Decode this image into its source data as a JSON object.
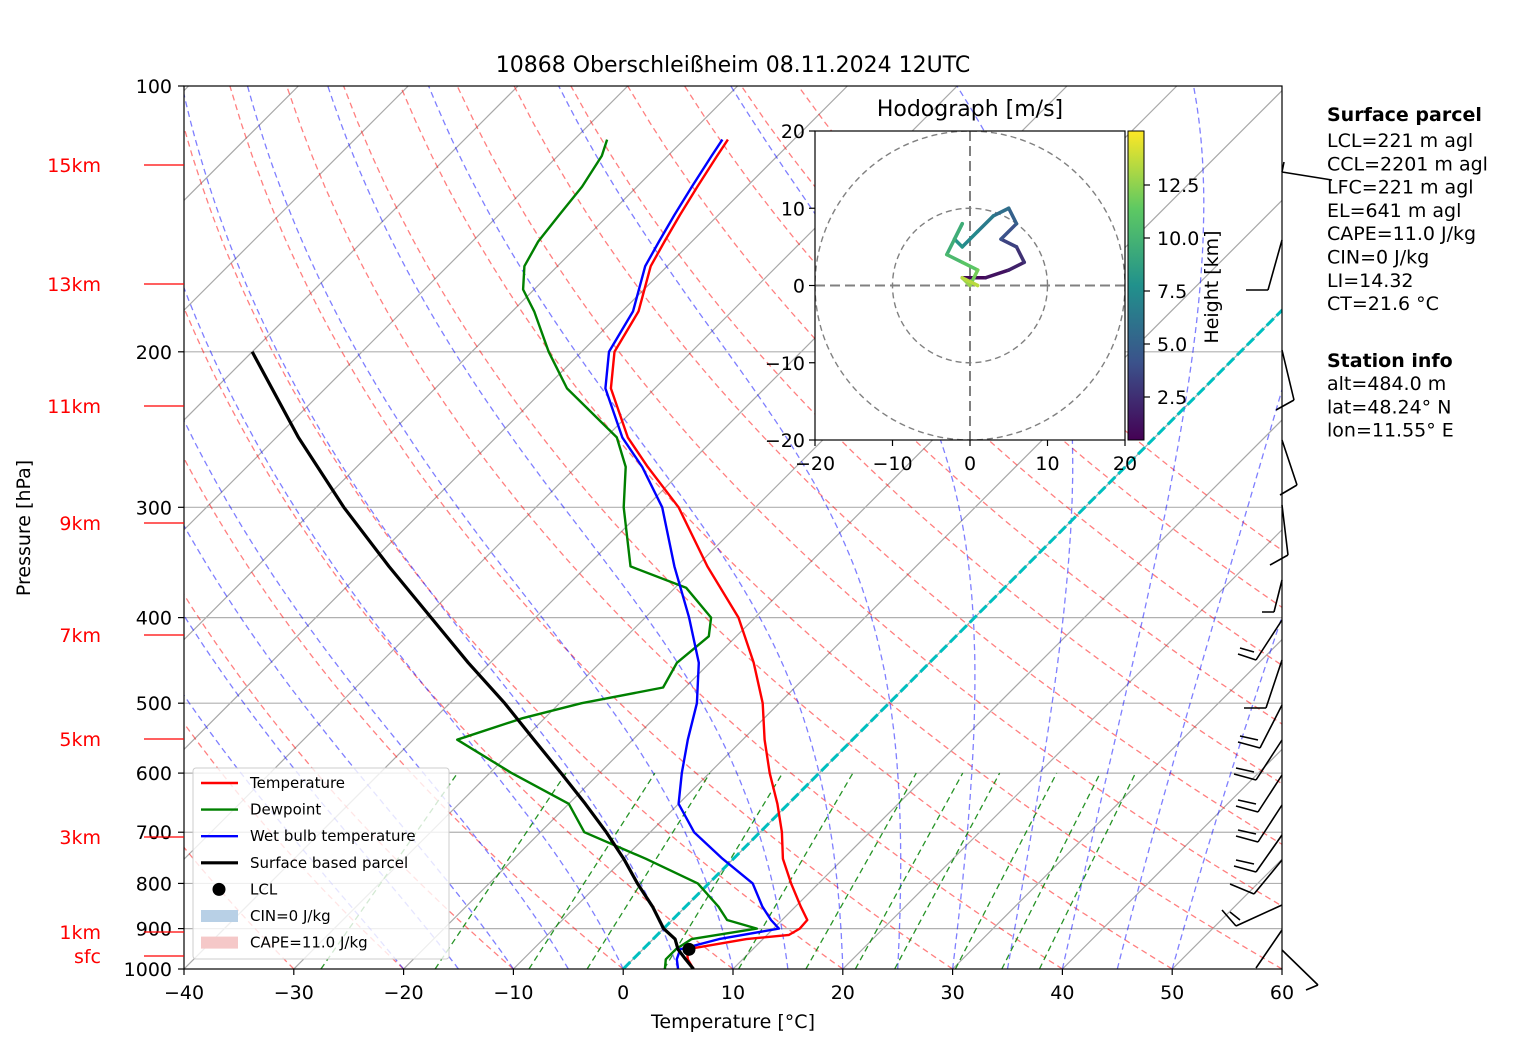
{
  "title": "10868 Oberschleißheim 08.11.2024 12UTC",
  "axes": {
    "xlabel": "Temperature [°C]",
    "ylabel": "Pressure [hPa]",
    "x_ticks": [
      "−40",
      "−30",
      "−20",
      "−10",
      "0",
      "10",
      "20",
      "30",
      "40",
      "50",
      "60"
    ],
    "y_ticks": [
      "100",
      "200",
      "300",
      "400",
      "500",
      "600",
      "700",
      "800",
      "900",
      "1000"
    ]
  },
  "height_labels": [
    "15km",
    "13km",
    "11km",
    "9km",
    "7km",
    "5km",
    "3km",
    "1km",
    "sfc"
  ],
  "legend": [
    {
      "label": "Temperature",
      "color": "#ff0000",
      "kind": "line"
    },
    {
      "label": "Dewpoint",
      "color": "#008000",
      "kind": "line"
    },
    {
      "label": "Wet bulb temperature",
      "color": "#0000ff",
      "kind": "line"
    },
    {
      "label": "Surface based parcel",
      "color": "#000000",
      "kind": "line"
    },
    {
      "label": "LCL",
      "color": "#000000",
      "kind": "dot"
    },
    {
      "label": "CIN=0 J/kg",
      "color": "#b8d0e6",
      "kind": "patch"
    },
    {
      "label": "CAPE=11.0 J/kg",
      "color": "#f5c8c8",
      "kind": "patch"
    }
  ],
  "hodograph": {
    "title": "Hodograph [m/s]",
    "ticks": [
      "−20",
      "−10",
      "0",
      "10",
      "20"
    ],
    "y_ticks": [
      "20",
      "10",
      "0",
      "−10",
      "−20"
    ],
    "colorbar_label": "Height [km]",
    "colorbar_ticks": [
      "12.5",
      "10.0",
      "7.5",
      "5.0",
      "2.5"
    ]
  },
  "surface_parcel": {
    "heading": "Surface parcel",
    "lines": [
      "LCL=221 m agl",
      "CCL=2201 m agl",
      "LFC=221 m agl",
      "EL=641 m agl",
      "CAPE=11.0 J/kg",
      "CIN=0 J/kg",
      "LI=14.32",
      "CT=21.6 °C"
    ]
  },
  "station_info": {
    "heading": "Station info",
    "lines": [
      "alt=484.0 m",
      "lat=48.24° N",
      "lon=11.55° E"
    ]
  },
  "colors": {
    "temperature": "#ff0000",
    "dewpoint": "#008000",
    "wetbulb": "#0000ff",
    "parcel": "#000000",
    "dry_adiabat": "#ff0000",
    "moist_adiabat": "#0000ff",
    "mixing_ratio": "#008000",
    "freezing_isotherm": "#00bfbf"
  },
  "chart_data": {
    "type": "line",
    "xlim": [
      -40,
      60
    ],
    "ylim": [
      1000,
      100
    ],
    "y_scale": "log",
    "grid": true,
    "legend_position": "lower-left",
    "series": [
      {
        "name": "Temperature",
        "points": [
          [
            1000,
            6.4
          ],
          [
            975,
            5.0
          ],
          [
            950,
            4.0
          ],
          [
            925,
            8.5
          ],
          [
            915,
            12.0
          ],
          [
            900,
            12.4
          ],
          [
            880,
            12.3
          ],
          [
            850,
            10.5
          ],
          [
            800,
            7.5
          ],
          [
            750,
            4.5
          ],
          [
            700,
            2.0
          ],
          [
            650,
            -1.0
          ],
          [
            600,
            -4.5
          ],
          [
            550,
            -8.0
          ],
          [
            500,
            -11.5
          ],
          [
            450,
            -16.0
          ],
          [
            400,
            -21.5
          ],
          [
            350,
            -29.0
          ],
          [
            300,
            -37.0
          ],
          [
            270,
            -43.5
          ],
          [
            250,
            -48.0
          ],
          [
            220,
            -54.0
          ],
          [
            200,
            -57.0
          ],
          [
            180,
            -58.5
          ],
          [
            160,
            -61.5
          ],
          [
            150,
            -62.5
          ],
          [
            140,
            -63.5
          ],
          [
            130,
            -64.5
          ],
          [
            120,
            -65.5
          ],
          [
            115,
            -66.0
          ]
        ]
      },
      {
        "name": "Dewpoint",
        "points": [
          [
            1000,
            3.8
          ],
          [
            975,
            3.0
          ],
          [
            950,
            3.0
          ],
          [
            925,
            3.5
          ],
          [
            900,
            8.5
          ],
          [
            880,
            5.0
          ],
          [
            850,
            3.0
          ],
          [
            800,
            -1.0
          ],
          [
            750,
            -8.0
          ],
          [
            700,
            -16.0
          ],
          [
            650,
            -20.0
          ],
          [
            600,
            -28.0
          ],
          [
            550,
            -36.0
          ],
          [
            520,
            -32.0
          ],
          [
            500,
            -28.0
          ],
          [
            480,
            -22.0
          ],
          [
            450,
            -23.0
          ],
          [
            420,
            -22.5
          ],
          [
            400,
            -24.0
          ],
          [
            370,
            -29.0
          ],
          [
            350,
            -36.0
          ],
          [
            300,
            -42.0
          ],
          [
            270,
            -45.5
          ],
          [
            250,
            -49.0
          ],
          [
            220,
            -58.0
          ],
          [
            200,
            -63.0
          ],
          [
            180,
            -68.0
          ],
          [
            170,
            -71.0
          ],
          [
            160,
            -73.0
          ],
          [
            150,
            -74.0
          ],
          [
            140,
            -74.5
          ],
          [
            130,
            -75.0
          ],
          [
            120,
            -76.0
          ],
          [
            115,
            -77.0
          ]
        ]
      },
      {
        "name": "Wet bulb temperature",
        "points": [
          [
            1000,
            5.0
          ],
          [
            975,
            4.0
          ],
          [
            950,
            3.4
          ],
          [
            925,
            6.0
          ],
          [
            900,
            10.5
          ],
          [
            880,
            9.0
          ],
          [
            850,
            7.0
          ],
          [
            800,
            4.0
          ],
          [
            750,
            -1.0
          ],
          [
            700,
            -6.0
          ],
          [
            650,
            -10.0
          ],
          [
            600,
            -12.5
          ],
          [
            550,
            -15.0
          ],
          [
            500,
            -17.5
          ],
          [
            450,
            -21.0
          ],
          [
            400,
            -26.0
          ],
          [
            350,
            -32.0
          ],
          [
            300,
            -38.5
          ],
          [
            270,
            -44.0
          ],
          [
            250,
            -48.5
          ],
          [
            220,
            -54.5
          ],
          [
            200,
            -57.5
          ],
          [
            180,
            -59.0
          ],
          [
            160,
            -62.0
          ],
          [
            150,
            -63.0
          ],
          [
            140,
            -64.0
          ],
          [
            130,
            -65.0
          ],
          [
            120,
            -66.0
          ],
          [
            115,
            -66.5
          ]
        ]
      },
      {
        "name": "Surface based parcel",
        "points": [
          [
            1000,
            6.4
          ],
          [
            975,
            4.8
          ],
          [
            950,
            3.2
          ],
          [
            925,
            2.0
          ],
          [
            900,
            0.0
          ],
          [
            850,
            -3.0
          ],
          [
            800,
            -6.5
          ],
          [
            750,
            -10.0
          ],
          [
            700,
            -14.0
          ],
          [
            650,
            -18.5
          ],
          [
            600,
            -23.5
          ],
          [
            550,
            -29.0
          ],
          [
            500,
            -35.0
          ],
          [
            450,
            -42.0
          ],
          [
            400,
            -49.5
          ],
          [
            350,
            -58.0
          ],
          [
            300,
            -67.5
          ],
          [
            250,
            -78.0
          ],
          [
            200,
            -90.0
          ]
        ]
      }
    ],
    "lcl": {
      "pressure": 950,
      "temperature": 4.2
    },
    "hodograph": {
      "xlim": [
        -20,
        20
      ],
      "ylim": [
        -20,
        20
      ],
      "u": [
        -1,
        2,
        5,
        7,
        6,
        4,
        6,
        5,
        3,
        1,
        -1,
        -2,
        -1,
        -3,
        -1,
        1,
        0,
        -1,
        1
      ],
      "v": [
        1,
        1,
        2,
        3,
        5,
        6,
        8,
        10,
        9,
        7,
        5,
        6,
        8,
        4,
        3,
        2,
        0,
        1,
        0
      ],
      "height_km": [
        0.3,
        0.8,
        1.5,
        2.2,
        3.0,
        3.8,
        4.6,
        5.4,
        6.2,
        7.0,
        7.8,
        8.6,
        9.4,
        10.2,
        11.0,
        11.8,
        12.6,
        13.4,
        14.2
      ]
    }
  }
}
